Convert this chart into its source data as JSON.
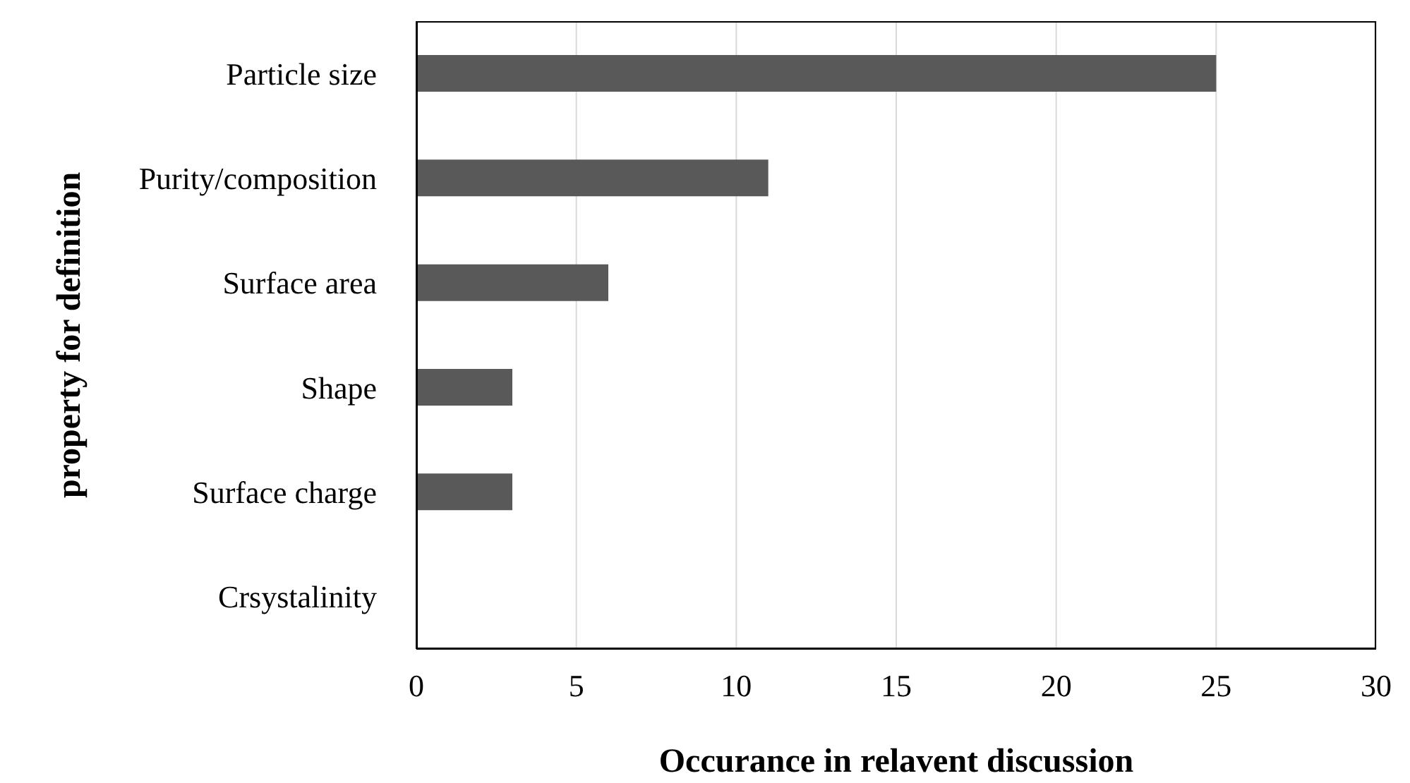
{
  "chart_data": {
    "type": "bar",
    "orientation": "horizontal",
    "xlabel": "Occurance in relavent discussion",
    "ylabel": "property for definition",
    "categories": [
      "Particle size",
      "Purity/composition",
      "Surface area",
      "Shape",
      "Surface charge",
      "Crsystalinity"
    ],
    "values": [
      25,
      11,
      6,
      3,
      3,
      0
    ],
    "color": "#595959",
    "xlim": [
      0,
      30
    ],
    "xticks": [
      0,
      5,
      10,
      15,
      20,
      25,
      30
    ],
    "grid": "x",
    "legend": false
  }
}
